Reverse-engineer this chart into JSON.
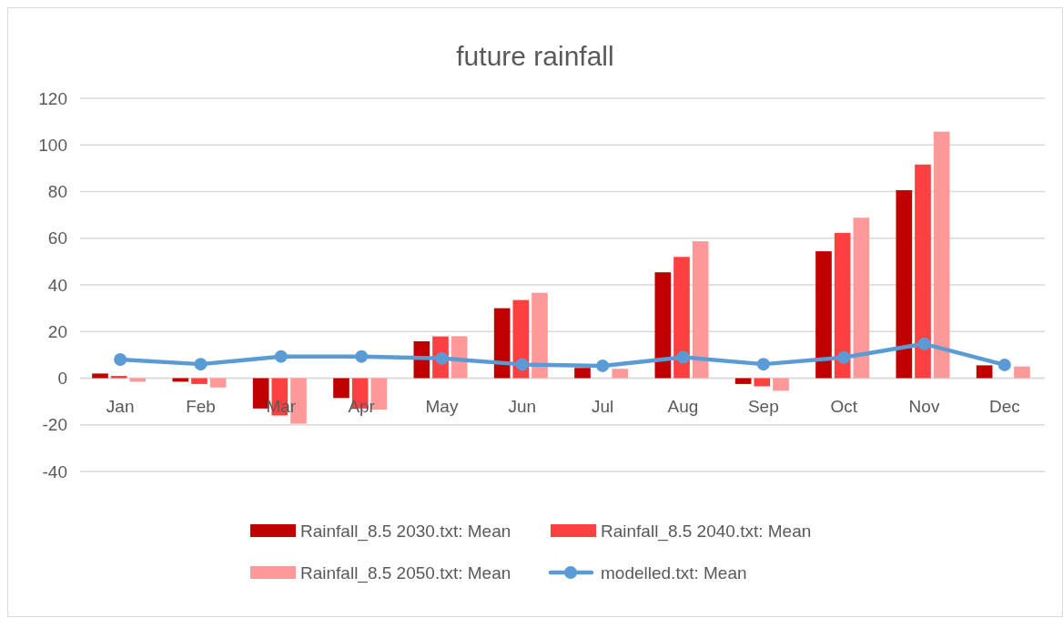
{
  "chart_data": {
    "type": "bar",
    "title": "future rainfall",
    "categories": [
      "Jan",
      "Feb",
      "Mar",
      "Apr",
      "May",
      "Jun",
      "Jul",
      "Aug",
      "Sep",
      "Oct",
      "Nov",
      "Dec"
    ],
    "series": [
      {
        "name": "Rainfall_8.5 2030.txt: Mean",
        "color": "#c00000",
        "values": [
          2,
          -1.5,
          -13,
          -8.5,
          15.8,
          30,
          4.4,
          45.4,
          -2.5,
          54.4,
          80.6,
          5.5
        ]
      },
      {
        "name": "Rainfall_8.5 2040.txt: Mean",
        "color": "#ff4040",
        "values": [
          1,
          -2.5,
          -16,
          -13,
          17.9,
          33.5,
          null,
          52,
          -3.5,
          62.3,
          91.6,
          null
        ]
      },
      {
        "name": "Rainfall_8.5 2050.txt: Mean",
        "color": "#ff9999",
        "values": [
          -1.5,
          -4,
          -19.5,
          -13.5,
          18,
          36.6,
          4,
          58.7,
          -5.4,
          68.8,
          105.7,
          5
        ]
      },
      {
        "name": "modelled.txt: Mean",
        "color": "#5b9bd5",
        "type": "line",
        "marker": "circle",
        "values": [
          8,
          6,
          9.3,
          9.3,
          8.5,
          5.9,
          5.3,
          9,
          6,
          8.9,
          14.7,
          5.7
        ]
      }
    ],
    "ylim": [
      -40,
      120
    ],
    "yticks": [
      -40,
      -20,
      0,
      20,
      40,
      60,
      80,
      100,
      120
    ],
    "grid": "y",
    "legend": "bottom"
  }
}
